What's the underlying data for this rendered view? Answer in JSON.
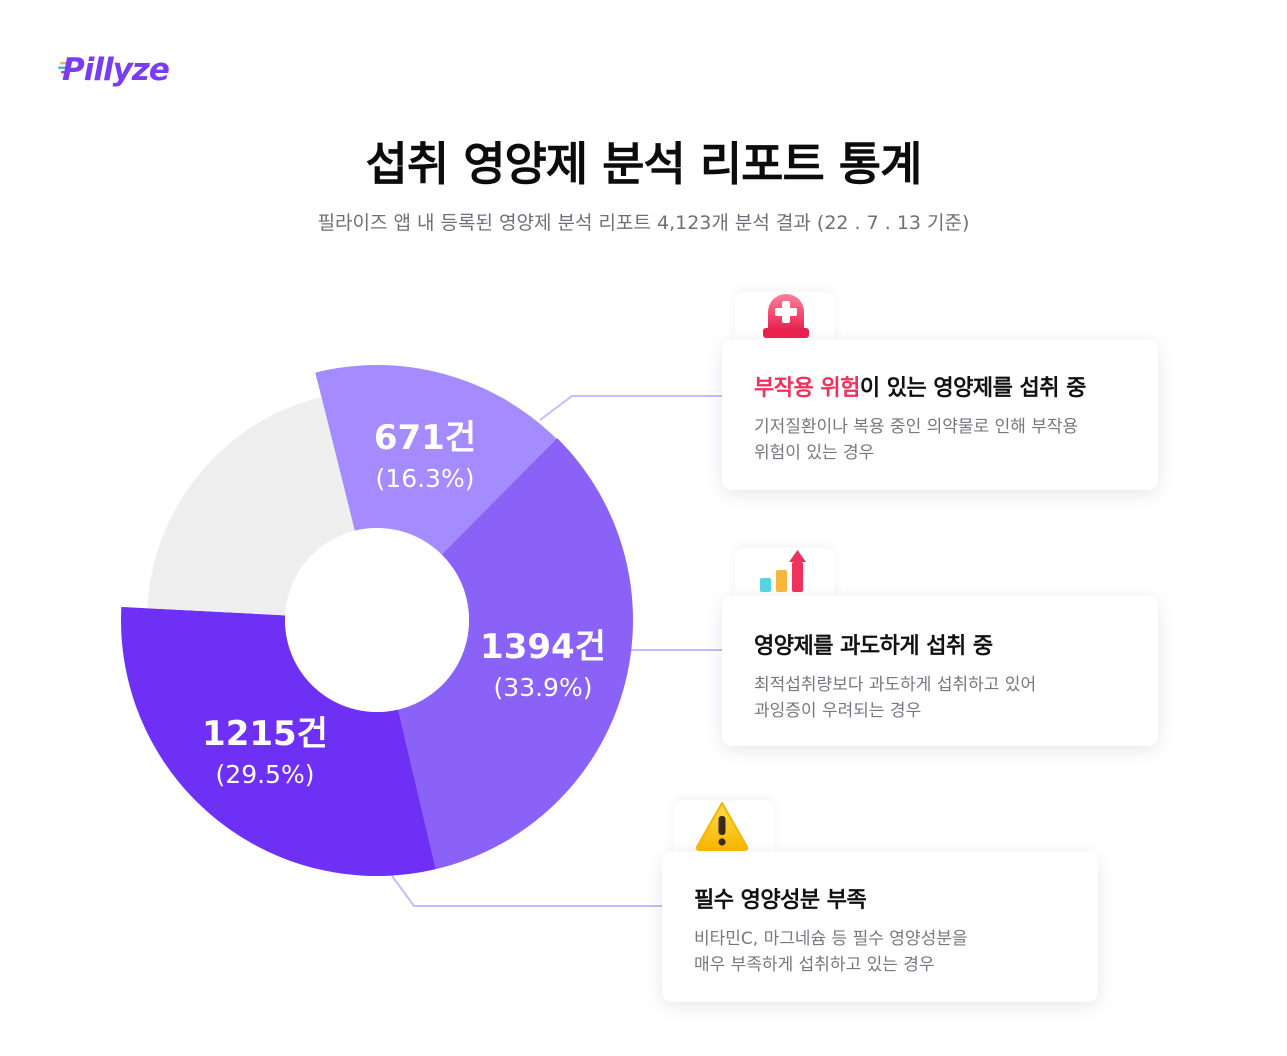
{
  "brand": {
    "logo_text": "Pillyze"
  },
  "header": {
    "title": "섭취 영양제 분석 리포트 통계",
    "subtitle": "필라이즈 앱 내 등록된 영양제 분석 리포트 4,123개 분석 결과 (22 . 7 . 13 기준)"
  },
  "chart_data": {
    "type": "pie",
    "style": "donut",
    "total_reports": 4123,
    "slices": [
      {
        "label": "부작용 위험이 있는 영양제를 섭취 중",
        "count": 671,
        "count_text": "671건",
        "percent_text": "(16.3%)",
        "percent": 16.3,
        "color": "#a48bff"
      },
      {
        "label": "영양제를 과도하게 섭취 중",
        "count": 1394,
        "count_text": "1394건",
        "percent_text": "(33.9%)",
        "percent": 33.9,
        "color": "#8a62f7"
      },
      {
        "label": "필수 영양성분 부족",
        "count": 1215,
        "count_text": "1215건",
        "percent_text": "(29.5%)",
        "percent": 29.5,
        "color": "#6f30f6"
      },
      {
        "label": "",
        "count": 843,
        "percent": 20.3,
        "color": "#eeeeee"
      }
    ]
  },
  "cards": [
    {
      "title_highlight": "부작용 위험",
      "title_rest": "이 있는 영양제를 섭취 중",
      "desc_line1": "기저질환이나 복용 중인 의약물로 인해 부작용",
      "desc_line2": "위험이 있는 경우",
      "icon": "siren-icon"
    },
    {
      "title": "영양제를 과도하게 섭취 중",
      "desc_line1": "최적섭취량보다 과도하게 섭취하고 있어",
      "desc_line2": "과잉증이 우려되는 경우",
      "icon": "bar-chart-up-icon"
    },
    {
      "title": "필수 영양성분 부족",
      "desc_line1": "비타민C, 마그네슘 등 필수 영양성분을",
      "desc_line2": "매우 부족하게 섭취하고 있는 경우",
      "icon": "warning-icon"
    }
  ],
  "colors": {
    "accent": "#7a3cf2",
    "highlight": "#f0315c",
    "connector": "#c9b9ff"
  }
}
